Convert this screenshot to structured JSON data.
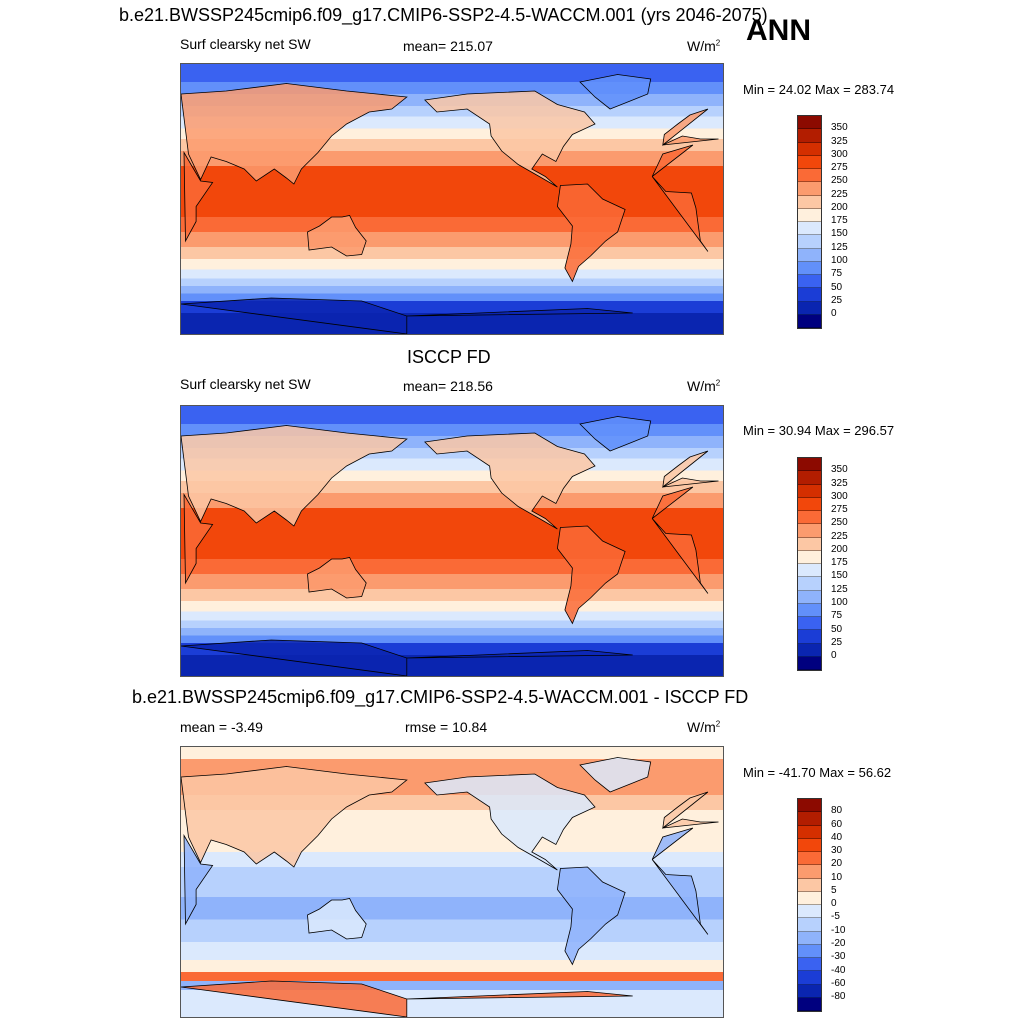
{
  "season": "ANN",
  "panels": [
    {
      "heading": "b.e21.BWSSP245cmip6.f09_g17.CMIP6-SSP2-4.5-WACCM.001 (yrs 2046-2075)",
      "left_label": "Surf clearsky net SW",
      "center_label": "mean= 215.07",
      "units": "W/m",
      "units_exp": "2",
      "minmax": "Min =  24.02 Max = 283.74",
      "field": "model"
    },
    {
      "heading": "ISCCP FD",
      "left_label": "Surf clearsky net SW",
      "center_label": "mean= 218.56",
      "units": "W/m",
      "units_exp": "2",
      "minmax": "Min =  30.94 Max = 296.57",
      "field": "obs"
    },
    {
      "heading": "b.e21.BWSSP245cmip6.f09_g17.CMIP6-SSP2-4.5-WACCM.001 - ISCCP FD",
      "left_label": "mean =  -3.49",
      "center_label": "rmse =  10.84",
      "units": "W/m",
      "units_exp": "2",
      "minmax": "Min = -41.70 Max =  56.62",
      "field": "diff"
    }
  ],
  "colorbar_abs": {
    "labels": [
      "350",
      "325",
      "300",
      "275",
      "250",
      "225",
      "200",
      "175",
      "150",
      "125",
      "100",
      "75",
      "50",
      "25",
      "0"
    ],
    "colors": [
      "#8c0a00",
      "#b21d00",
      "#d42f00",
      "#f2470b",
      "#fa6a36",
      "#fb9b6e",
      "#fcc7a4",
      "#fff0dd",
      "#dbe9fd",
      "#b7d1fd",
      "#8fb3fb",
      "#6290fa",
      "#3a62f1",
      "#1b3dd6",
      "#0a25b0",
      "#00007f"
    ]
  },
  "colorbar_diff": {
    "labels": [
      "80",
      "60",
      "40",
      "30",
      "20",
      "10",
      "5",
      "0",
      "-5",
      "-10",
      "-20",
      "-30",
      "-40",
      "-60",
      "-80"
    ],
    "colors": [
      "#8c0a00",
      "#b21d00",
      "#d42f00",
      "#f2470b",
      "#fa6a36",
      "#fb9b6e",
      "#fcc7a4",
      "#fff0dd",
      "#dbe9fd",
      "#b7d1fd",
      "#8fb3fb",
      "#6290fa",
      "#3a62f1",
      "#1b3dd6",
      "#0a25b0",
      "#00007f"
    ]
  }
}
